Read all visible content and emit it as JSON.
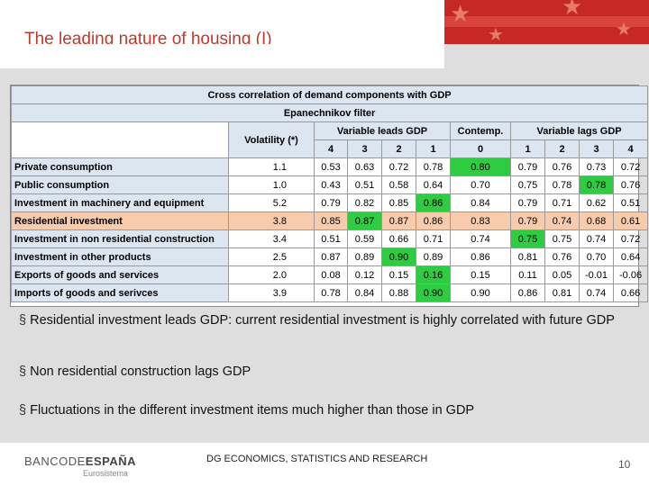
{
  "title": "The leading nature of housing (I)",
  "table": {
    "caption": "Cross correlation of demand components with GDP",
    "filter": "Epanechnikov filter",
    "volatility_header": "Volatility (*)",
    "group_leads": "Variable leads GDP",
    "group_contemp": "Contemp.",
    "group_lags": "Variable lags GDP",
    "lag_numbers": [
      "4",
      "3",
      "2",
      "1",
      "0",
      "1",
      "2",
      "3",
      "4"
    ],
    "rows": [
      {
        "label": "Private consumption",
        "volatility": "1.1",
        "values": [
          "0.53",
          "0.63",
          "0.72",
          "0.78",
          "0.80",
          "0.79",
          "0.76",
          "0.73",
          "0.72"
        ],
        "green": [
          4
        ],
        "highlight": false
      },
      {
        "label": "Public consumption",
        "volatility": "1.0",
        "values": [
          "0.43",
          "0.51",
          "0.58",
          "0.64",
          "0.70",
          "0.75",
          "0.78",
          "0.78",
          "0.76"
        ],
        "green": [
          7
        ],
        "highlight": false
      },
      {
        "label": "Investment in machinery and equipment",
        "volatility": "5.2",
        "values": [
          "0.79",
          "0.82",
          "0.85",
          "0.86",
          "0.84",
          "0.79",
          "0.71",
          "0.62",
          "0.51"
        ],
        "green": [
          3
        ],
        "highlight": false
      },
      {
        "label": "Residential investment",
        "volatility": "3.8",
        "values": [
          "0.85",
          "0.87",
          "0.87",
          "0.86",
          "0.83",
          "0.79",
          "0.74",
          "0.68",
          "0.61"
        ],
        "green": [
          1
        ],
        "highlight": true
      },
      {
        "label": "Investment in non residential construction",
        "volatility": "3.4",
        "values": [
          "0.51",
          "0.59",
          "0.66",
          "0.71",
          "0.74",
          "0.75",
          "0.75",
          "0.74",
          "0.72"
        ],
        "green": [
          5
        ],
        "highlight": false
      },
      {
        "label": "Investment in other products",
        "volatility": "2.5",
        "values": [
          "0.87",
          "0.89",
          "0.90",
          "0.89",
          "0.86",
          "0.81",
          "0.76",
          "0.70",
          "0.64"
        ],
        "green": [
          2
        ],
        "highlight": false
      },
      {
        "label": "Exports of goods and services",
        "volatility": "2.0",
        "values": [
          "0.08",
          "0.12",
          "0.15",
          "0.16",
          "0.15",
          "0.11",
          "0.05",
          "-0.01",
          "-0.06"
        ],
        "green": [
          3
        ],
        "highlight": false
      },
      {
        "label": "Imports of goods and serivces",
        "volatility": "3.9",
        "values": [
          "0.78",
          "0.84",
          "0.88",
          "0.90",
          "0.90",
          "0.86",
          "0.81",
          "0.74",
          "0.66"
        ],
        "green": [
          3
        ],
        "highlight": false
      }
    ]
  },
  "bullets": [
    "Residential investment leads GDP: current residential investment is highly correlated with future GDP",
    "Non residential construction lags GDP",
    "Fluctuations in the different investment items much higher than those in GDP"
  ],
  "bullet_marker": "§",
  "footer": {
    "logo_left": "BANCODE",
    "logo_right": "ESPAÑA",
    "logo_sub": "Eurosistema",
    "center_text": "DG ECONOMICS, STATISTICS AND RESEARCH",
    "page_number": "10"
  },
  "colors": {
    "title": "#c0392b",
    "highlight_row": "#f8cbad",
    "max_cell": "#2ecc40",
    "header_fill": "#dce6f1"
  }
}
